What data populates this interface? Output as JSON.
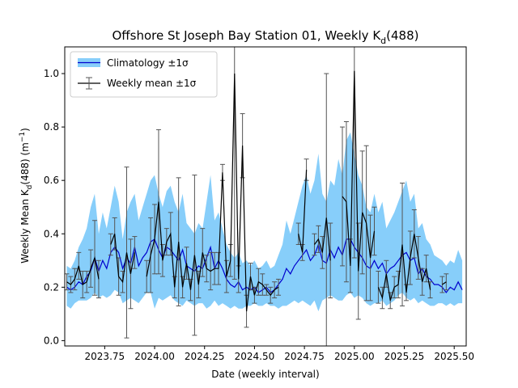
{
  "chart_data": {
    "type": "line",
    "title": "Offshore St Joseph Bay Station 01, Weekly K",
    "title_sub": "d",
    "title_suffix": "(488)",
    "xlabel": "Date (weekly interval)",
    "ylabel_main": "Weekly Mean K",
    "ylabel_sub": "d",
    "ylabel_mid": "(488) (m",
    "ylabel_sup": "−1",
    "ylabel_end": ")",
    "xlim": [
      2023.55,
      2025.56
    ],
    "ylim": [
      -0.02,
      1.1
    ],
    "x_ticks": [
      2023.75,
      2024.0,
      2024.25,
      2024.5,
      2024.75,
      2025.0,
      2025.25,
      2025.5
    ],
    "x_tick_labels": [
      "2023.75",
      "2024.00",
      "2024.25",
      "2024.50",
      "2024.75",
      "2025.00",
      "2025.25",
      "2025.50"
    ],
    "y_ticks": [
      0.0,
      0.2,
      0.4,
      0.6,
      0.8,
      1.0
    ],
    "y_tick_labels": [
      "0.0",
      "0.2",
      "0.4",
      "0.6",
      "0.8",
      "1.0"
    ],
    "grid": false,
    "legend_position": "top-left",
    "legend": [
      {
        "label": "Climatology ±1σ",
        "kind": "band"
      },
      {
        "label": "Weekly mean ±1σ",
        "kind": "errorbar"
      }
    ],
    "colors": {
      "band": "#87cefa",
      "climatology_line": "#0000cd",
      "weekly": "#000000",
      "errorbar": "#555555"
    },
    "climatology": {
      "x": [
        2023.56,
        2023.58,
        2023.6,
        2023.62,
        2023.64,
        2023.66,
        2023.68,
        2023.7,
        2023.72,
        2023.74,
        2023.76,
        2023.78,
        2023.8,
        2023.82,
        2023.84,
        2023.86,
        2023.88,
        2023.9,
        2023.92,
        2023.94,
        2023.96,
        2023.98,
        2024.0,
        2024.02,
        2024.04,
        2024.06,
        2024.08,
        2024.1,
        2024.12,
        2024.14,
        2024.16,
        2024.18,
        2024.2,
        2024.22,
        2024.24,
        2024.26,
        2024.28,
        2024.3,
        2024.32,
        2024.34,
        2024.36,
        2024.38,
        2024.4,
        2024.42,
        2024.44,
        2024.46,
        2024.48,
        2024.5,
        2024.52,
        2024.54,
        2024.56,
        2024.58,
        2024.6,
        2024.62,
        2024.64,
        2024.66,
        2024.68,
        2024.7,
        2024.72,
        2024.74,
        2024.76,
        2024.78,
        2024.8,
        2024.82,
        2024.84,
        2024.86,
        2024.88,
        2024.9,
        2024.92,
        2024.94,
        2024.96,
        2024.98,
        2025.0,
        2025.02,
        2025.04,
        2025.06,
        2025.08,
        2025.1,
        2025.12,
        2025.14,
        2025.16,
        2025.18,
        2025.2,
        2025.22,
        2025.24,
        2025.26,
        2025.28,
        2025.3,
        2025.32,
        2025.34,
        2025.36,
        2025.38,
        2025.4,
        2025.42,
        2025.44,
        2025.46,
        2025.48,
        2025.5,
        2025.52,
        2025.54
      ],
      "mean": [
        0.2,
        0.19,
        0.2,
        0.22,
        0.21,
        0.24,
        0.26,
        0.31,
        0.26,
        0.3,
        0.27,
        0.33,
        0.35,
        0.33,
        0.27,
        0.31,
        0.29,
        0.35,
        0.28,
        0.31,
        0.33,
        0.37,
        0.38,
        0.34,
        0.31,
        0.35,
        0.34,
        0.32,
        0.3,
        0.34,
        0.28,
        0.27,
        0.26,
        0.28,
        0.27,
        0.31,
        0.35,
        0.27,
        0.3,
        0.27,
        0.23,
        0.21,
        0.2,
        0.22,
        0.19,
        0.2,
        0.19,
        0.2,
        0.18,
        0.19,
        0.2,
        0.18,
        0.19,
        0.21,
        0.23,
        0.27,
        0.25,
        0.28,
        0.3,
        0.32,
        0.34,
        0.3,
        0.32,
        0.36,
        0.3,
        0.29,
        0.34,
        0.31,
        0.35,
        0.32,
        0.38,
        0.38,
        0.35,
        0.33,
        0.31,
        0.28,
        0.27,
        0.3,
        0.27,
        0.29,
        0.25,
        0.27,
        0.28,
        0.3,
        0.32,
        0.33,
        0.3,
        0.31,
        0.25,
        0.27,
        0.24,
        0.23,
        0.21,
        0.21,
        0.2,
        0.18,
        0.2,
        0.19,
        0.22,
        0.19
      ],
      "lower": [
        0.13,
        0.12,
        0.14,
        0.15,
        0.15,
        0.15,
        0.16,
        0.18,
        0.16,
        0.17,
        0.16,
        0.17,
        0.19,
        0.18,
        0.14,
        0.15,
        0.16,
        0.15,
        0.14,
        0.16,
        0.18,
        0.18,
        0.12,
        0.16,
        0.15,
        0.16,
        0.17,
        0.15,
        0.14,
        0.13,
        0.15,
        0.14,
        0.13,
        0.14,
        0.14,
        0.12,
        0.13,
        0.15,
        0.13,
        0.14,
        0.13,
        0.12,
        0.13,
        0.12,
        0.12,
        0.13,
        0.13,
        0.14,
        0.13,
        0.13,
        0.14,
        0.13,
        0.13,
        0.12,
        0.13,
        0.13,
        0.14,
        0.15,
        0.14,
        0.15,
        0.14,
        0.13,
        0.15,
        0.11,
        0.15,
        0.16,
        0.17,
        0.16,
        0.15,
        0.15,
        0.17,
        0.18,
        0.16,
        0.17,
        0.16,
        0.14,
        0.13,
        0.14,
        0.14,
        0.15,
        0.13,
        0.14,
        0.15,
        0.17,
        0.18,
        0.16,
        0.15,
        0.16,
        0.14,
        0.15,
        0.14,
        0.13,
        0.13,
        0.14,
        0.14,
        0.13,
        0.14,
        0.13,
        0.14,
        0.14
      ],
      "upper": [
        0.28,
        0.27,
        0.3,
        0.35,
        0.38,
        0.42,
        0.5,
        0.55,
        0.4,
        0.48,
        0.42,
        0.5,
        0.58,
        0.52,
        0.38,
        0.48,
        0.52,
        0.55,
        0.45,
        0.5,
        0.55,
        0.6,
        0.62,
        0.55,
        0.5,
        0.56,
        0.58,
        0.52,
        0.48,
        0.55,
        0.44,
        0.42,
        0.4,
        0.44,
        0.42,
        0.52,
        0.62,
        0.45,
        0.48,
        0.42,
        0.36,
        0.33,
        0.31,
        0.33,
        0.29,
        0.3,
        0.28,
        0.3,
        0.27,
        0.28,
        0.3,
        0.27,
        0.28,
        0.32,
        0.36,
        0.45,
        0.4,
        0.46,
        0.52,
        0.58,
        0.62,
        0.55,
        0.6,
        0.7,
        0.55,
        0.52,
        0.6,
        0.58,
        0.68,
        0.62,
        0.75,
        0.78,
        0.7,
        0.62,
        0.58,
        0.5,
        0.48,
        0.55,
        0.48,
        0.52,
        0.42,
        0.45,
        0.48,
        0.52,
        0.56,
        0.6,
        0.52,
        0.55,
        0.42,
        0.44,
        0.38,
        0.36,
        0.32,
        0.31,
        0.3,
        0.28,
        0.3,
        0.29,
        0.34,
        0.3
      ]
    },
    "weekly": {
      "segments": [
        [
          {
            "x": 2023.56,
            "y": 0.22,
            "err": 0.03
          },
          {
            "x": 2023.58,
            "y": 0.21,
            "err": 0.03
          },
          {
            "x": 2023.6,
            "y": 0.23,
            "err": 0.04
          },
          {
            "x": 2023.62,
            "y": 0.28,
            "err": 0.05
          },
          {
            "x": 2023.64,
            "y": 0.21,
            "err": 0.05
          },
          {
            "x": 2023.66,
            "y": 0.22,
            "err": 0.04
          },
          {
            "x": 2023.68,
            "y": 0.27,
            "err": 0.07
          },
          {
            "x": 2023.7,
            "y": 0.31,
            "err": 0.14
          },
          {
            "x": 2023.72,
            "y": 0.23,
            "err": 0.07
          }
        ],
        [
          {
            "x": 2023.78,
            "y": 0.36,
            "err": 0.04
          },
          {
            "x": 2023.8,
            "y": 0.4,
            "err": 0.06
          },
          {
            "x": 2023.82,
            "y": 0.24,
            "err": 0.07
          },
          {
            "x": 2023.84,
            "y": 0.22,
            "err": 0.04
          },
          {
            "x": 2023.86,
            "y": 0.33,
            "err": 0.32
          },
          {
            "x": 2023.88,
            "y": 0.25,
            "err": 0.13
          },
          {
            "x": 2023.9,
            "y": 0.33,
            "err": 0.06
          }
        ],
        [
          {
            "x": 2023.96,
            "y": 0.24,
            "err": 0.06
          },
          {
            "x": 2023.98,
            "y": 0.32,
            "err": 0.14
          },
          {
            "x": 2024.0,
            "y": 0.38,
            "err": 0.13
          },
          {
            "x": 2024.02,
            "y": 0.52,
            "err": 0.27
          },
          {
            "x": 2024.04,
            "y": 0.3,
            "err": 0.06
          },
          {
            "x": 2024.06,
            "y": 0.37,
            "err": 0.05
          },
          {
            "x": 2024.08,
            "y": 0.4,
            "err": 0.08
          },
          {
            "x": 2024.1,
            "y": 0.2,
            "err": 0.04
          },
          {
            "x": 2024.12,
            "y": 0.37,
            "err": 0.24
          },
          {
            "x": 2024.14,
            "y": 0.2,
            "err": 0.04
          },
          {
            "x": 2024.16,
            "y": 0.29,
            "err": 0.06
          },
          {
            "x": 2024.18,
            "y": 0.19,
            "err": 0.04
          },
          {
            "x": 2024.2,
            "y": 0.32,
            "err": 0.3
          },
          {
            "x": 2024.22,
            "y": 0.21,
            "err": 0.05
          },
          {
            "x": 2024.24,
            "y": 0.33,
            "err": 0.09
          },
          {
            "x": 2024.26,
            "y": 0.27,
            "err": 0.05
          },
          {
            "x": 2024.28,
            "y": 0.26,
            "err": 0.07
          },
          {
            "x": 2024.3,
            "y": 0.27,
            "err": 0.06
          },
          {
            "x": 2024.32,
            "y": 0.27,
            "err": 0.06
          },
          {
            "x": 2024.34,
            "y": 0.63,
            "err": 0.03
          },
          {
            "x": 2024.36,
            "y": 0.24,
            "err": 0.06
          },
          {
            "x": 2024.38,
            "y": 0.3,
            "err": 0.06
          },
          {
            "x": 2024.4,
            "y": 1.0,
            "err": 0.77
          },
          {
            "x": 2024.42,
            "y": 0.23,
            "err": 0.05
          },
          {
            "x": 2024.44,
            "y": 0.73,
            "err": 0.12
          },
          {
            "x": 2024.46,
            "y": 0.11,
            "err": 0.06
          },
          {
            "x": 2024.48,
            "y": 0.24,
            "err": 0.05
          },
          {
            "x": 2024.5,
            "y": 0.17,
            "err": 0.03
          },
          {
            "x": 2024.52,
            "y": 0.22,
            "err": 0.05
          },
          {
            "x": 2024.54,
            "y": 0.21,
            "err": 0.04
          },
          {
            "x": 2024.56,
            "y": 0.19,
            "err": 0.02
          },
          {
            "x": 2024.58,
            "y": 0.17,
            "err": 0.03
          },
          {
            "x": 2024.6,
            "y": 0.19,
            "err": 0.03
          },
          {
            "x": 2024.62,
            "y": 0.2,
            "err": 0.03
          }
        ],
        [
          {
            "x": 2024.72,
            "y": 0.4,
            "err": 0.04
          },
          {
            "x": 2024.74,
            "y": 0.33,
            "err": 0.03
          },
          {
            "x": 2024.76,
            "y": 0.64,
            "err": 0.04
          }
        ],
        [
          {
            "x": 2024.8,
            "y": 0.36,
            "err": 0.04
          },
          {
            "x": 2024.82,
            "y": 0.38,
            "err": 0.05
          },
          {
            "x": 2024.84,
            "y": 0.33,
            "err": 0.06
          },
          {
            "x": 2024.86,
            "y": 0.46,
            "err": 0.54
          },
          {
            "x": 2024.88,
            "y": 0.3,
            "err": 0.14
          }
        ],
        [
          {
            "x": 2024.94,
            "y": 0.54,
            "err": 0.26
          },
          {
            "x": 2024.96,
            "y": 0.52,
            "err": 0.3
          },
          {
            "x": 2024.98,
            "y": 0.28,
            "err": 0.1
          },
          {
            "x": 2025.0,
            "y": 1.01,
            "err": 0.7
          },
          {
            "x": 2025.02,
            "y": 0.26,
            "err": 0.18
          },
          {
            "x": 2025.04,
            "y": 0.48,
            "err": 0.23
          },
          {
            "x": 2025.06,
            "y": 0.44,
            "err": 0.29
          },
          {
            "x": 2025.08,
            "y": 0.31,
            "err": 0.16
          },
          {
            "x": 2025.1,
            "y": 0.41,
            "err": 0.09
          }
        ],
        [
          {
            "x": 2025.12,
            "y": 0.2,
            "err": 0.06
          },
          {
            "x": 2025.14,
            "y": 0.16,
            "err": 0.04
          },
          {
            "x": 2025.16,
            "y": 0.25,
            "err": 0.05
          },
          {
            "x": 2025.18,
            "y": 0.15,
            "err": 0.03
          },
          {
            "x": 2025.2,
            "y": 0.2,
            "err": 0.04
          },
          {
            "x": 2025.22,
            "y": 0.21,
            "err": 0.05
          },
          {
            "x": 2025.24,
            "y": 0.36,
            "err": 0.23
          },
          {
            "x": 2025.26,
            "y": 0.18,
            "err": 0.03
          },
          {
            "x": 2025.28,
            "y": 0.31,
            "err": 0.1
          },
          {
            "x": 2025.3,
            "y": 0.4,
            "err": 0.09
          },
          {
            "x": 2025.32,
            "y": 0.31,
            "err": 0.08
          },
          {
            "x": 2025.34,
            "y": 0.22,
            "err": 0.05
          },
          {
            "x": 2025.36,
            "y": 0.27,
            "err": 0.05
          },
          {
            "x": 2025.38,
            "y": 0.19,
            "err": 0.03
          }
        ],
        [
          {
            "x": 2025.44,
            "y": 0.21,
            "err": 0.03
          },
          {
            "x": 2025.46,
            "y": 0.22,
            "err": 0.03
          }
        ]
      ]
    }
  }
}
